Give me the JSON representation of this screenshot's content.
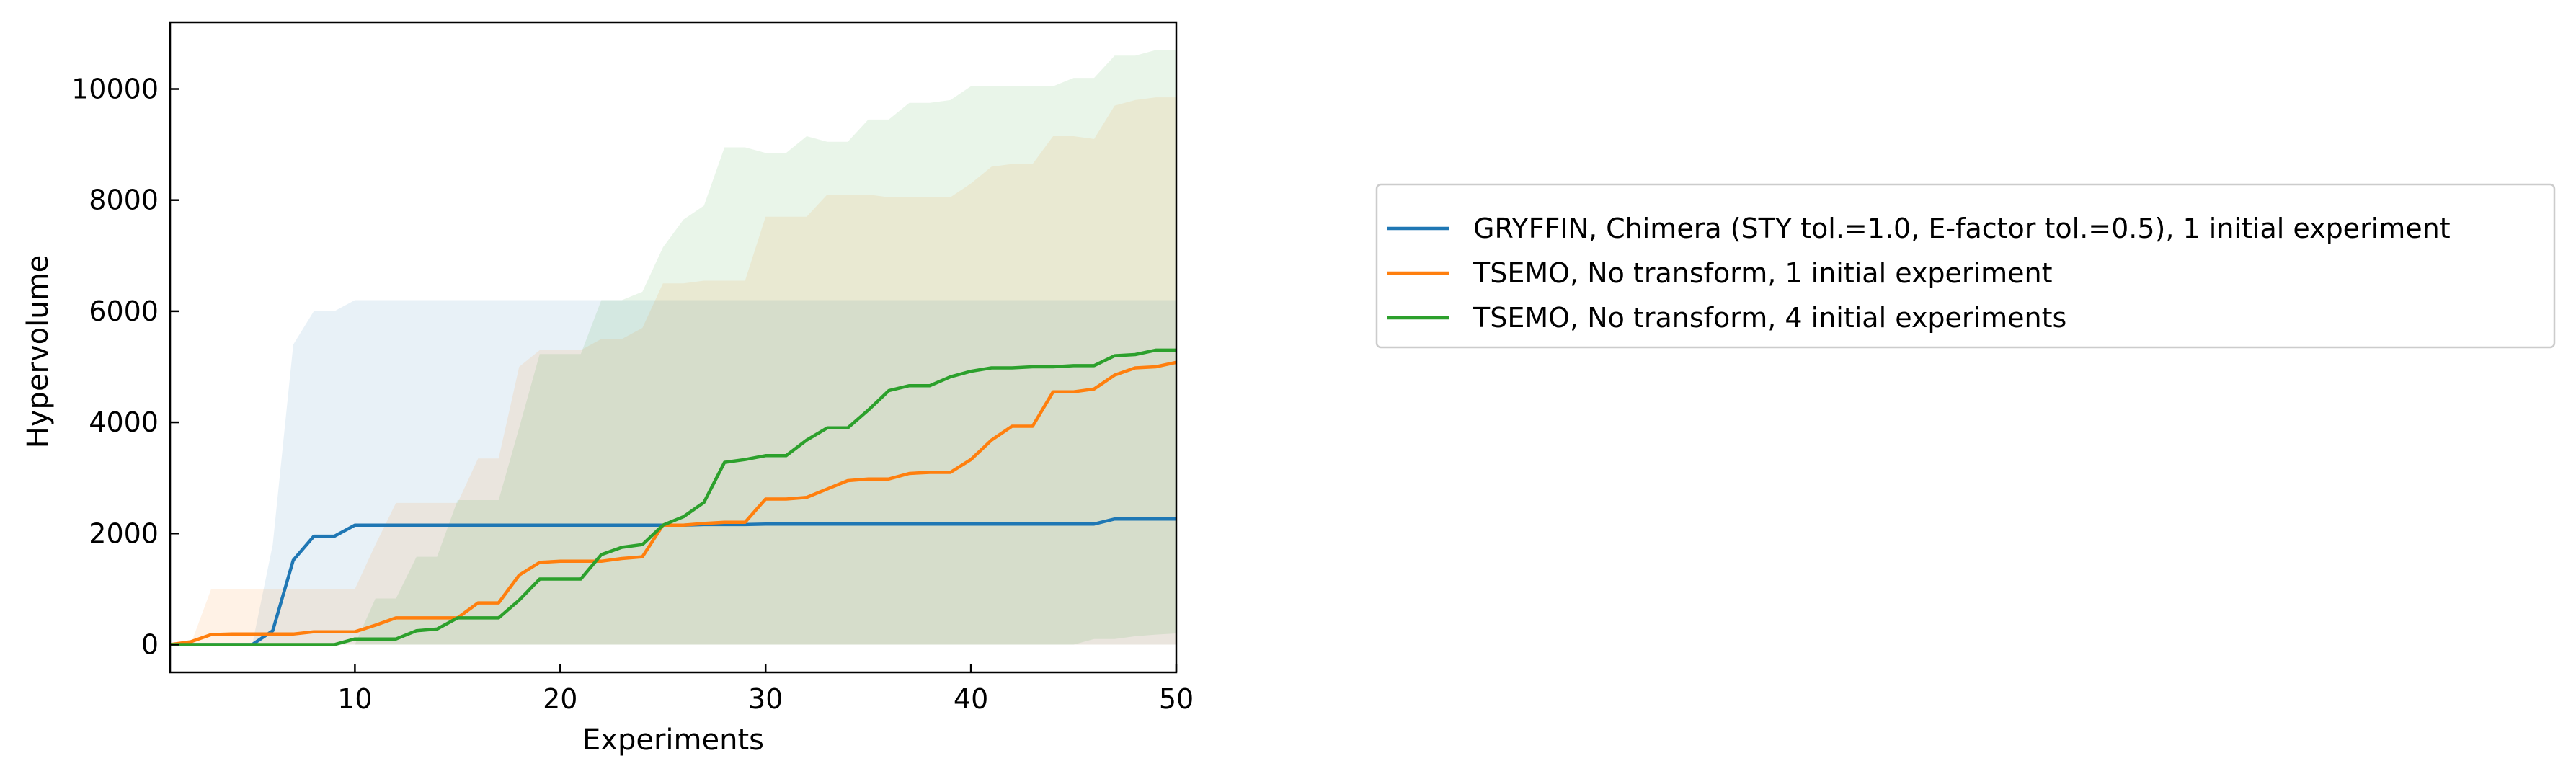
{
  "chart_data": {
    "type": "line",
    "xlabel": "Experiments",
    "ylabel": "Hypervolume",
    "xlim": [
      1,
      50
    ],
    "ylim": [
      -500,
      11200
    ],
    "xticks": [
      10,
      20,
      30,
      40,
      50
    ],
    "yticks": [
      0,
      2000,
      4000,
      6000,
      8000,
      10000
    ],
    "grid": false,
    "legend_position": "right, outside plot",
    "x": [
      1,
      2,
      3,
      4,
      5,
      6,
      7,
      8,
      9,
      10,
      11,
      12,
      13,
      14,
      15,
      16,
      17,
      18,
      19,
      20,
      21,
      22,
      23,
      24,
      25,
      26,
      27,
      28,
      29,
      30,
      31,
      32,
      33,
      34,
      35,
      36,
      37,
      38,
      39,
      40,
      41,
      42,
      43,
      44,
      45,
      46,
      47,
      48,
      49,
      50
    ],
    "series": [
      {
        "name": "GRYFFIN, Chimera (STY tol.=1.0, E-factor tol.=0.5), 1 initial experiment",
        "color": "#1f77b4",
        "values": [
          0,
          0,
          0,
          0,
          0,
          250,
          1520,
          1950,
          1950,
          2150,
          2150,
          2150,
          2150,
          2150,
          2150,
          2150,
          2150,
          2150,
          2150,
          2150,
          2150,
          2150,
          2150,
          2150,
          2150,
          2150,
          2160,
          2160,
          2160,
          2170,
          2170,
          2170,
          2170,
          2170,
          2170,
          2170,
          2170,
          2170,
          2170,
          2170,
          2170,
          2170,
          2170,
          2170,
          2170,
          2170,
          2260,
          2260,
          2260,
          2260
        ],
        "band_upper": [
          0,
          0,
          0,
          0,
          0,
          1800,
          5400,
          6000,
          6000,
          6200,
          6200,
          6200,
          6200,
          6200,
          6200,
          6200,
          6200,
          6200,
          6200,
          6200,
          6200,
          6200,
          6200,
          6200,
          6200,
          6200,
          6200,
          6200,
          6200,
          6200,
          6200,
          6200,
          6200,
          6200,
          6200,
          6200,
          6200,
          6200,
          6200,
          6200,
          6200,
          6200,
          6200,
          6200,
          6200,
          6200,
          6200,
          6200,
          6200,
          6200
        ],
        "band_lower": [
          0,
          0,
          0,
          0,
          0,
          0,
          0,
          0,
          0,
          0,
          0,
          0,
          0,
          0,
          0,
          0,
          0,
          0,
          0,
          0,
          0,
          0,
          0,
          0,
          0,
          0,
          0,
          0,
          0,
          0,
          0,
          0,
          0,
          0,
          0,
          0,
          0,
          0,
          0,
          0,
          0,
          0,
          0,
          0,
          0,
          0,
          0,
          0,
          0,
          0
        ]
      },
      {
        "name": "TSEMO, No transform, 1 initial experiment",
        "color": "#ff7f0e",
        "values": [
          0,
          50,
          180,
          190,
          190,
          190,
          190,
          230,
          230,
          230,
          350,
          480,
          480,
          480,
          480,
          750,
          750,
          1250,
          1480,
          1500,
          1500,
          1500,
          1550,
          1580,
          2150,
          2150,
          2180,
          2200,
          2200,
          2620,
          2620,
          2650,
          2800,
          2950,
          2980,
          2980,
          3080,
          3100,
          3100,
          3330,
          3680,
          3930,
          3930,
          4550,
          4550,
          4600,
          4850,
          4980,
          5000,
          5080
        ],
        "band_upper": [
          0,
          0,
          1000,
          1000,
          1000,
          1000,
          1000,
          1000,
          1000,
          1000,
          1800,
          2550,
          2550,
          2550,
          2550,
          3350,
          3350,
          5000,
          5300,
          5300,
          5300,
          5500,
          5500,
          5700,
          6500,
          6500,
          6550,
          6550,
          6550,
          7700,
          7700,
          7700,
          8100,
          8100,
          8100,
          8050,
          8050,
          8050,
          8050,
          8300,
          8600,
          8650,
          8650,
          9150,
          9150,
          9100,
          9700,
          9800,
          9850,
          9850
        ],
        "band_lower": [
          0,
          0,
          0,
          0,
          0,
          0,
          0,
          0,
          0,
          0,
          0,
          0,
          0,
          0,
          0,
          0,
          0,
          0,
          0,
          0,
          0,
          0,
          0,
          0,
          0,
          0,
          0,
          0,
          0,
          0,
          0,
          0,
          0,
          0,
          0,
          0,
          0,
          0,
          0,
          0,
          0,
          0,
          0,
          0,
          0,
          0,
          0,
          0,
          0,
          0
        ]
      },
      {
        "name": "TSEMO, No transform, 4 initial experiments",
        "color": "#2ca02c",
        "values": [
          0,
          0,
          0,
          0,
          0,
          0,
          0,
          0,
          0,
          100,
          100,
          100,
          250,
          280,
          480,
          480,
          480,
          800,
          1180,
          1180,
          1180,
          1620,
          1750,
          1800,
          2150,
          2300,
          2560,
          3280,
          3330,
          3400,
          3400,
          3680,
          3900,
          3900,
          4220,
          4570,
          4660,
          4660,
          4820,
          4920,
          4980,
          4980,
          5000,
          5000,
          5020,
          5020,
          5200,
          5220,
          5300,
          5300
        ],
        "band_upper": [
          0,
          0,
          0,
          0,
          0,
          0,
          0,
          0,
          0,
          0,
          830,
          830,
          1580,
          1580,
          2600,
          2600,
          2600,
          3900,
          5230,
          5230,
          5230,
          6200,
          6200,
          6350,
          7150,
          7650,
          7900,
          8950,
          8950,
          8850,
          8850,
          9150,
          9050,
          9050,
          9450,
          9450,
          9750,
          9750,
          9800,
          10050,
          10050,
          10050,
          10050,
          10050,
          10200,
          10200,
          10600,
          10600,
          10700,
          10700
        ],
        "band_lower": [
          0,
          0,
          0,
          0,
          0,
          0,
          0,
          0,
          0,
          0,
          0,
          0,
          0,
          0,
          0,
          0,
          0,
          0,
          0,
          0,
          0,
          0,
          0,
          0,
          0,
          0,
          0,
          0,
          0,
          0,
          0,
          0,
          0,
          0,
          0,
          0,
          0,
          0,
          0,
          0,
          0,
          0,
          0,
          0,
          0,
          100,
          100,
          150,
          180,
          200
        ]
      }
    ]
  }
}
